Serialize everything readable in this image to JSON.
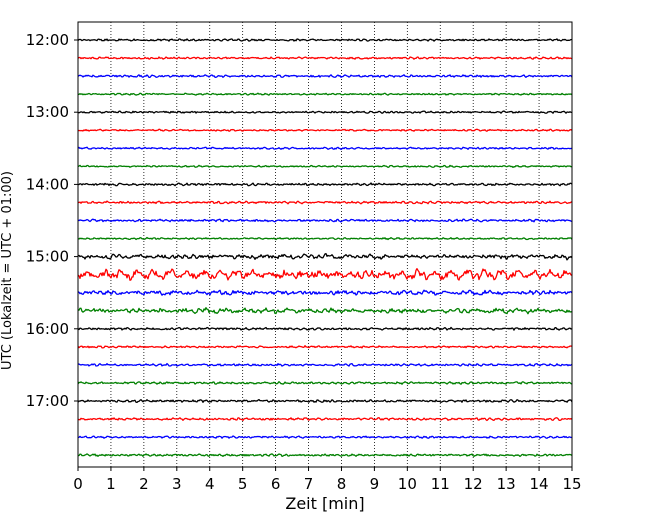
{
  "chart_data": {
    "type": "line",
    "title": "",
    "xlabel": "Zeit  [min]",
    "ylabel": "UTC (Lokalzeit = UTC + 01:00)",
    "xlim": [
      0,
      15
    ],
    "x_ticks": [
      "0",
      "1",
      "2",
      "3",
      "4",
      "5",
      "6",
      "7",
      "8",
      "9",
      "10",
      "11",
      "12",
      "13",
      "14",
      "15"
    ],
    "y_ticks": [
      "12:00",
      "13:00",
      "14:00",
      "15:00",
      "16:00",
      "17:00"
    ],
    "grid_x": true,
    "trace_interval_minutes": 15,
    "traces": [
      {
        "start": "12:00",
        "color": "#000000",
        "amplitude": 0.25
      },
      {
        "start": "12:15",
        "color": "#ff0000",
        "amplitude": 0.25
      },
      {
        "start": "12:30",
        "color": "#0000ff",
        "amplitude": 0.28
      },
      {
        "start": "12:45",
        "color": "#008000",
        "amplitude": 0.22
      },
      {
        "start": "13:00",
        "color": "#000000",
        "amplitude": 0.25
      },
      {
        "start": "13:15",
        "color": "#ff0000",
        "amplitude": 0.22
      },
      {
        "start": "13:30",
        "color": "#0000ff",
        "amplitude": 0.25
      },
      {
        "start": "13:45",
        "color": "#008000",
        "amplitude": 0.22
      },
      {
        "start": "14:00",
        "color": "#000000",
        "amplitude": 0.3
      },
      {
        "start": "14:15",
        "color": "#ff0000",
        "amplitude": 0.3
      },
      {
        "start": "14:30",
        "color": "#0000ff",
        "amplitude": 0.3
      },
      {
        "start": "14:45",
        "color": "#008000",
        "amplitude": 0.22
      },
      {
        "start": "15:00",
        "color": "#000000",
        "amplitude": 0.5
      },
      {
        "start": "15:15",
        "color": "#ff0000",
        "amplitude": 0.9
      },
      {
        "start": "15:30",
        "color": "#0000ff",
        "amplitude": 0.5
      },
      {
        "start": "15:45",
        "color": "#008000",
        "amplitude": 0.5
      },
      {
        "start": "16:00",
        "color": "#000000",
        "amplitude": 0.3
      },
      {
        "start": "16:15",
        "color": "#ff0000",
        "amplitude": 0.25
      },
      {
        "start": "16:30",
        "color": "#0000ff",
        "amplitude": 0.28
      },
      {
        "start": "16:45",
        "color": "#008000",
        "amplitude": 0.28
      },
      {
        "start": "17:00",
        "color": "#000000",
        "amplitude": 0.3
      },
      {
        "start": "17:15",
        "color": "#ff0000",
        "amplitude": 0.3
      },
      {
        "start": "17:30",
        "color": "#0000ff",
        "amplitude": 0.25
      },
      {
        "start": "17:45",
        "color": "#008000",
        "amplitude": 0.28
      }
    ]
  }
}
